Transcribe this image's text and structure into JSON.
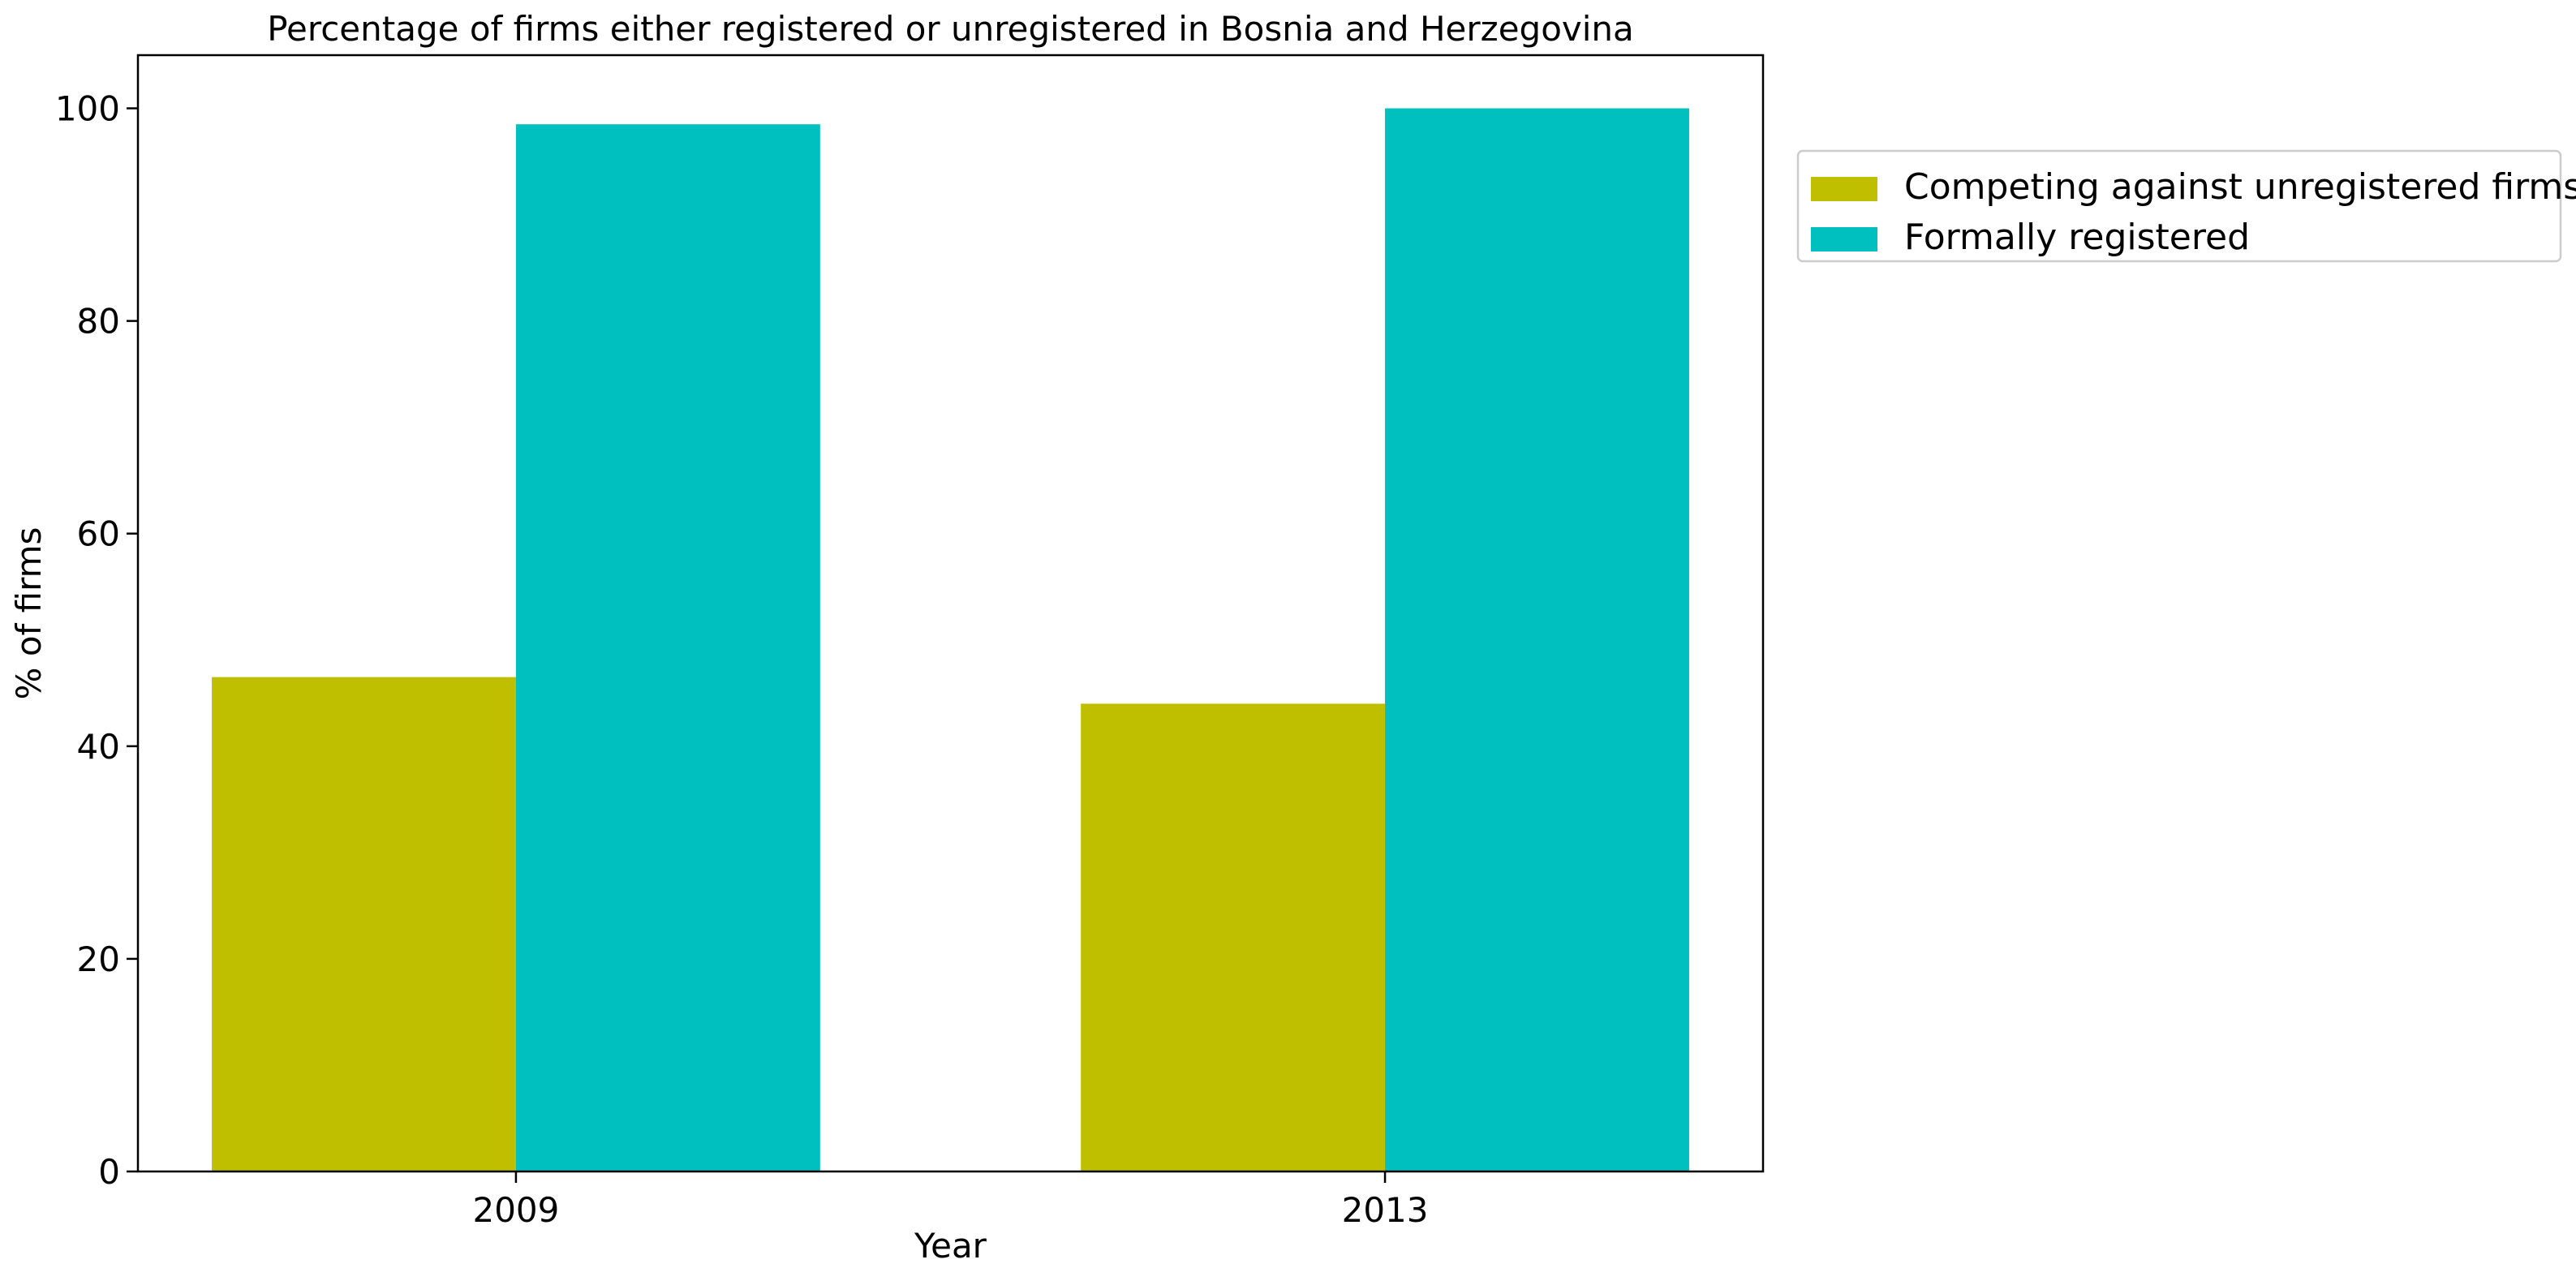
{
  "chart_data": {
    "type": "bar",
    "title": "Percentage of firms either registered or unregistered in Bosnia and Herzegovina",
    "xlabel": "Year",
    "ylabel": "% of firms",
    "categories": [
      "2009",
      "2013"
    ],
    "series": [
      {
        "name": "Competing against unregistered firms",
        "color": "#bfbf00",
        "values": [
          46.5,
          44.0
        ]
      },
      {
        "name": "Formally registered",
        "color": "#00bfbf",
        "values": [
          98.5,
          100.0
        ]
      }
    ],
    "ylim": [
      0,
      105
    ],
    "yticks": [
      0,
      20,
      40,
      60,
      80,
      100
    ],
    "grid": false,
    "legend_position": "outside-top-right"
  }
}
